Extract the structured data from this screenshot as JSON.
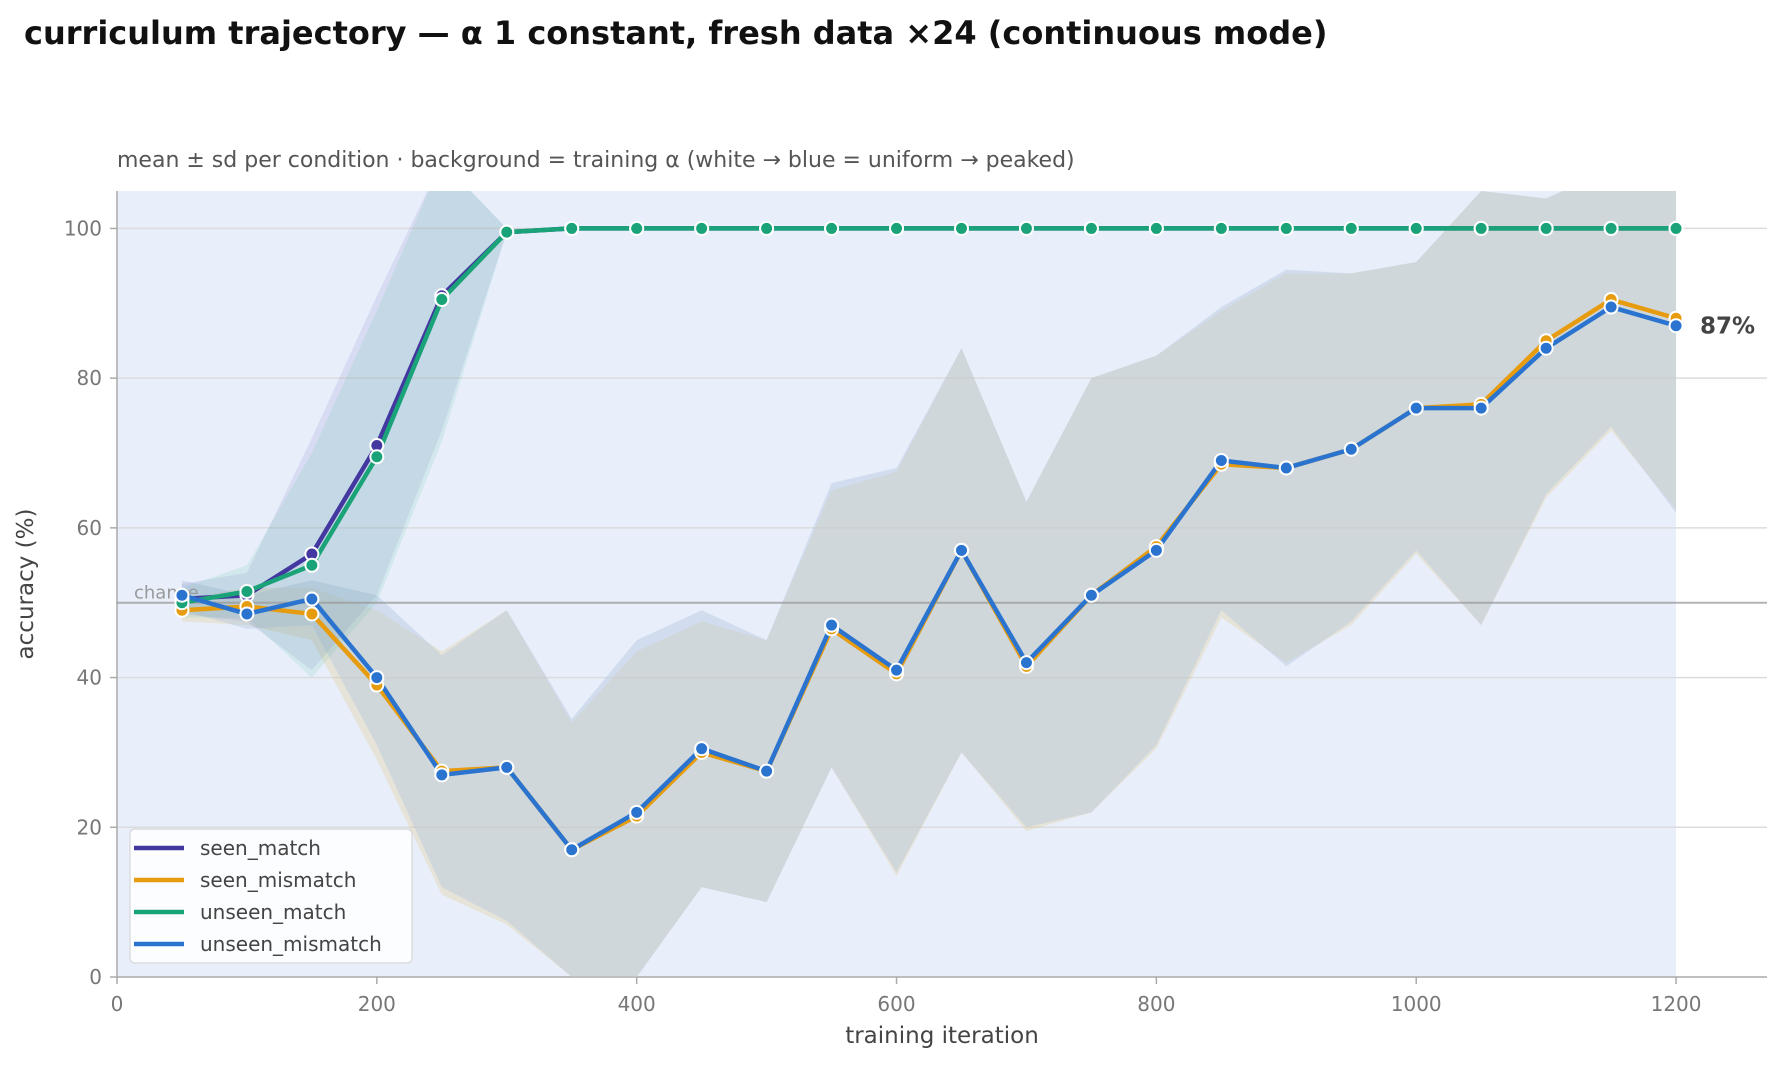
{
  "chart_data": {
    "type": "line",
    "title": "curriculum trajectory — α 1 constant, fresh data ×24 (continuous mode)",
    "subtitle": "mean ± sd per condition · background = training α (white → blue = uniform → peaked)",
    "xlabel": "training iteration",
    "ylabel": "accuracy (%)",
    "xlim": [
      0,
      1270
    ],
    "ylim": [
      0,
      105
    ],
    "xticks": [
      0,
      200,
      400,
      600,
      800,
      1000,
      1200
    ],
    "yticks": [
      0,
      20,
      40,
      60,
      80,
      100
    ],
    "grid": "horizontal",
    "legend_position": "lower-left",
    "background_alpha_span": [
      0,
      1200
    ],
    "chance_level": 50,
    "chance_label": "chance",
    "end_annotation": "87%",
    "x": [
      50,
      100,
      150,
      200,
      250,
      300,
      350,
      400,
      450,
      500,
      550,
      600,
      650,
      700,
      750,
      800,
      850,
      900,
      950,
      1000,
      1050,
      1100,
      1150,
      1200
    ],
    "series": [
      {
        "name": "seen_match",
        "color": "#4338a0",
        "values": [
          50.5,
          51,
          56.5,
          71,
          91,
          99.5,
          100,
          100,
          100,
          100,
          100,
          100,
          100,
          100,
          100,
          100,
          100,
          100,
          100,
          100,
          100,
          100,
          100,
          100
        ],
        "lower": [
          48.5,
          47.5,
          41,
          51,
          73,
          99.5,
          100,
          100,
          100,
          100,
          100,
          100,
          100,
          100,
          100,
          100,
          100,
          100,
          100,
          100,
          100,
          100,
          100,
          100
        ],
        "upper": [
          52.5,
          54,
          72,
          91,
          109,
          100,
          100,
          100,
          100,
          100,
          100,
          100,
          100,
          100,
          100,
          100,
          100,
          100,
          100,
          100,
          100,
          100,
          100,
          100
        ]
      },
      {
        "name": "seen_mismatch",
        "color": "#e69c0e",
        "values": [
          49,
          49.5,
          48.5,
          39,
          27.5,
          28,
          17,
          21.5,
          30,
          27.5,
          46.5,
          40.5,
          57,
          41.5,
          51,
          57.5,
          68.5,
          68,
          70.5,
          76,
          76.5,
          85,
          90.5,
          88
        ],
        "lower": [
          47.5,
          47,
          45,
          29,
          11,
          7,
          0,
          0,
          12,
          10,
          28,
          13.5,
          30,
          19.5,
          22,
          30.5,
          48,
          42,
          47,
          56.5,
          47,
          64,
          73,
          62.5
        ],
        "upper": [
          50.5,
          52,
          52,
          49,
          43.5,
          49,
          34,
          43.5,
          47.5,
          45,
          65,
          67.5,
          84,
          63.5,
          80,
          83,
          89,
          94,
          94,
          95.5,
          105,
          104,
          108,
          108
        ]
      },
      {
        "name": "unseen_match",
        "color": "#1aa278",
        "values": [
          50,
          51.5,
          55,
          69.5,
          90.5,
          99.5,
          100,
          100,
          100,
          100,
          100,
          100,
          100,
          100,
          100,
          100,
          100,
          100,
          100,
          100,
          100,
          100,
          100,
          100
        ],
        "lower": [
          48,
          48,
          40,
          50,
          71.5,
          99.5,
          100,
          100,
          100,
          100,
          100,
          100,
          100,
          100,
          100,
          100,
          100,
          100,
          100,
          100,
          100,
          100,
          100,
          100
        ],
        "upper": [
          52,
          55,
          70,
          89,
          109,
          100,
          100,
          100,
          100,
          100,
          100,
          100,
          100,
          100,
          100,
          100,
          100,
          100,
          100,
          100,
          100,
          100,
          100,
          100
        ]
      },
      {
        "name": "unseen_mismatch",
        "color": "#2a74d0",
        "values": [
          51,
          48.5,
          50.5,
          40,
          27,
          28,
          17,
          22,
          30.5,
          27.5,
          47,
          41,
          57,
          42,
          51,
          57,
          69,
          68,
          70.5,
          76,
          76,
          84,
          89.5,
          87
        ],
        "lower": [
          49,
          46.5,
          47,
          31,
          12,
          7.5,
          0,
          0,
          12,
          10,
          28,
          14,
          30,
          20,
          22,
          31,
          49,
          41.5,
          47.5,
          57,
          47,
          64.5,
          73.5,
          62
        ],
        "upper": [
          53,
          51,
          53,
          51,
          43,
          49,
          34.5,
          45,
          49,
          45,
          66,
          68,
          84,
          63.5,
          80,
          83,
          89.5,
          94.5,
          94,
          95.5,
          105,
          104,
          108,
          108
        ]
      }
    ]
  }
}
